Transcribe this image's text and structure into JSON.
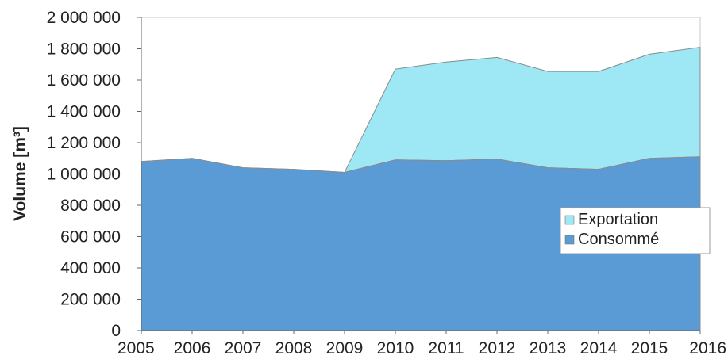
{
  "chart_data": {
    "type": "area",
    "stacked": true,
    "categories": [
      "2005",
      "2006",
      "2007",
      "2008",
      "2009",
      "2010",
      "2011",
      "2012",
      "2013",
      "2014",
      "2015",
      "2016"
    ],
    "series": [
      {
        "name": "Consommé",
        "color": "#5b9bd5",
        "values": [
          1080000,
          1100000,
          1040000,
          1030000,
          1010000,
          1090000,
          1085000,
          1095000,
          1040000,
          1030000,
          1100000,
          1110000
        ]
      },
      {
        "name": "Exportation",
        "color": "#9ee7f4",
        "values": [
          0,
          0,
          0,
          0,
          0,
          580000,
          630000,
          650000,
          615000,
          625000,
          665000,
          700000
        ]
      }
    ],
    "ylabel": "Volume [m³]",
    "ylim": [
      0,
      2000000
    ],
    "yticks": [
      "0",
      "200 000",
      "400 000",
      "600 000",
      "800 000",
      "1 000 000",
      "1 200 000",
      "1 400 000",
      "1 600 000",
      "1 800 000",
      "2 000 000"
    ],
    "ytick_values": [
      0,
      200000,
      400000,
      600000,
      800000,
      1000000,
      1200000,
      1400000,
      1600000,
      1800000,
      2000000
    ],
    "legend": {
      "position": "right",
      "entries": [
        "Exportation",
        "Consommé"
      ]
    },
    "grid": false
  }
}
